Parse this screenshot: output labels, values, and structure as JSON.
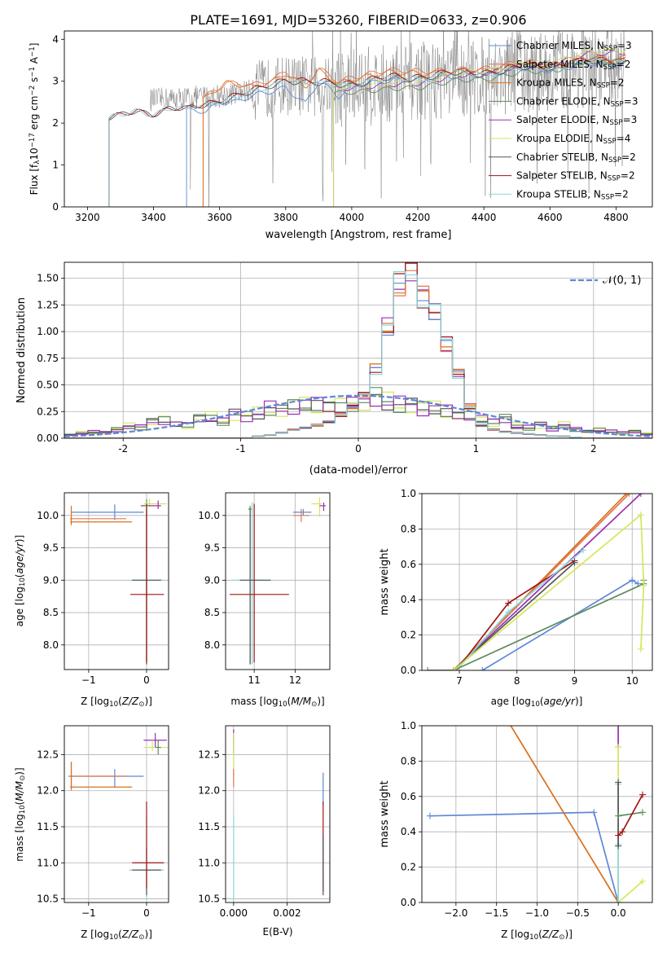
{
  "figure_title": "PLATE=1691, MJD=53260, FIBERID=0633, z=0.906",
  "colors": {
    "Chabrier MILES": "#5f87d6",
    "Salpeter MILES": "#e07850",
    "Kroupa MILES": "#d9711f",
    "Chabrier ELODIE": "#5e8a5e",
    "Salpeter ELODIE": "#9b2fb0",
    "Kroupa ELODIE": "#d6e65a",
    "Chabrier STELIB": "#555555",
    "Salpeter STELIB": "#a11515",
    "Kroupa STELIB": "#88d8dc",
    "normal_curve": "#5f87d6",
    "data": "#808080"
  },
  "chart_data": [
    {
      "id": "spectrum",
      "type": "line",
      "title": "PLATE=1691, MJD=53260, FIBERID=0633, z=0.906",
      "xlabel": "wavelength [Angstrom, rest frame]",
      "ylabel": "Flux [f_λ10^-17 erg cm^-2 s^-1 A^-1]",
      "xlim": [
        3130,
        4910
      ],
      "ylim": [
        0,
        4.2
      ],
      "xticks": [
        3200,
        3400,
        3600,
        3800,
        4000,
        4200,
        4400,
        4600,
        4800
      ],
      "yticks": [
        0,
        1,
        2,
        3,
        4
      ],
      "grid": false,
      "legend_position": "top-right",
      "legend": [
        "Chabrier MILES, N_SSP=3",
        "Salpeter MILES, N_SSP=2",
        "Kroupa MILES, N_SSP=2",
        "Chabrier ELODIE, N_SSP=3",
        "Salpeter ELODIE, N_SSP=3",
        "Kroupa ELODIE, N_SSP=4",
        "Chabrier STELIB, N_SSP=2",
        "Salpeter STELIB, N_SSP=2",
        "Kroupa STELIB, N_SSP=2"
      ],
      "data_series": {
        "name": "data",
        "x_range": [
          3390,
          4830
        ],
        "baseline": [
          [
            3390,
            2.55
          ],
          [
            3600,
            2.65
          ],
          [
            3800,
            2.9
          ],
          [
            4000,
            2.85
          ],
          [
            4200,
            3.0
          ],
          [
            4400,
            3.1
          ],
          [
            4600,
            3.25
          ],
          [
            4830,
            3.4
          ]
        ]
      },
      "model_series": [
        {
          "name": "Chabrier MILES",
          "start": 3500,
          "points": [
            [
              3500,
              2.25
            ],
            [
              3560,
              2.3
            ],
            [
              3600,
              2.55
            ],
            [
              3650,
              2.5
            ],
            [
              3700,
              2.6
            ],
            [
              3800,
              2.9
            ],
            [
              3860,
              2.45
            ],
            [
              3900,
              2.95
            ],
            [
              3960,
              2.65
            ],
            [
              4000,
              2.95
            ],
            [
              4100,
              2.95
            ],
            [
              4200,
              3.1
            ],
            [
              4300,
              3.05
            ],
            [
              4400,
              3.2
            ],
            [
              4600,
              3.3
            ],
            [
              4830,
              3.45
            ]
          ]
        },
        {
          "name": "Salpeter MILES",
          "start": 3550,
          "points": [
            [
              3550,
              2.6
            ],
            [
              3580,
              2.8
            ],
            [
              3620,
              3.0
            ],
            [
              3700,
              2.85
            ],
            [
              3760,
              3.05
            ],
            [
              3800,
              3.3
            ],
            [
              3860,
              2.9
            ],
            [
              3900,
              3.25
            ],
            [
              3960,
              3.0
            ],
            [
              4000,
              3.15
            ],
            [
              4100,
              3.2
            ],
            [
              4200,
              3.3
            ],
            [
              4300,
              3.2
            ],
            [
              4400,
              3.35
            ],
            [
              4600,
              3.45
            ],
            [
              4830,
              3.6
            ]
          ]
        },
        {
          "name": "Kroupa MILES",
          "start": 3550,
          "points": [
            [
              3550,
              2.55
            ],
            [
              3580,
              2.8
            ],
            [
              3620,
              3.0
            ],
            [
              3700,
              2.8
            ],
            [
              3760,
              3.0
            ],
            [
              3800,
              3.25
            ],
            [
              3860,
              2.85
            ],
            [
              3900,
              3.2
            ],
            [
              3960,
              2.95
            ],
            [
              4000,
              3.1
            ],
            [
              4100,
              3.15
            ],
            [
              4200,
              3.25
            ],
            [
              4300,
              3.15
            ],
            [
              4400,
              3.3
            ],
            [
              4600,
              3.4
            ],
            [
              4830,
              3.55
            ]
          ]
        },
        {
          "name": "Chabrier ELODIE",
          "start": 3945,
          "points": [
            [
              3945,
              2.7
            ],
            [
              4000,
              2.8
            ],
            [
              4100,
              2.75
            ],
            [
              4200,
              2.9
            ],
            [
              4300,
              2.95
            ],
            [
              4400,
              3.1
            ],
            [
              4500,
              3.15
            ],
            [
              4600,
              3.3
            ],
            [
              4830,
              3.55
            ]
          ]
        },
        {
          "name": "Salpeter ELODIE",
          "start": 3945,
          "points": [
            [
              3945,
              2.8
            ],
            [
              4000,
              2.9
            ],
            [
              4100,
              2.85
            ],
            [
              4200,
              3.0
            ],
            [
              4300,
              3.05
            ],
            [
              4400,
              3.25
            ],
            [
              4500,
              3.3
            ],
            [
              4600,
              3.45
            ],
            [
              4830,
              3.75
            ]
          ]
        },
        {
          "name": "Kroupa ELODIE",
          "start": 3945,
          "points": [
            [
              3945,
              2.85
            ],
            [
              4000,
              2.95
            ],
            [
              4100,
              2.9
            ],
            [
              4200,
              3.05
            ],
            [
              4300,
              3.1
            ],
            [
              4400,
              3.3
            ],
            [
              4500,
              3.35
            ],
            [
              4600,
              3.5
            ],
            [
              4830,
              3.8
            ]
          ]
        },
        {
          "name": "Chabrier STELIB",
          "start": 3265,
          "points": [
            [
              3265,
              2.1
            ],
            [
              3300,
              2.15
            ],
            [
              3350,
              2.3
            ],
            [
              3400,
              2.25
            ],
            [
              3450,
              2.35
            ],
            [
              3500,
              2.3
            ],
            [
              3600,
              2.55
            ],
            [
              3700,
              2.7
            ],
            [
              3800,
              3.05
            ],
            [
              3900,
              2.9
            ],
            [
              4000,
              2.95
            ],
            [
              4200,
              3.1
            ],
            [
              4400,
              3.2
            ],
            [
              4600,
              3.35
            ],
            [
              4830,
              3.5
            ]
          ]
        },
        {
          "name": "Salpeter STELIB",
          "start": 3265,
          "points": [
            [
              3265,
              2.1
            ],
            [
              3300,
              2.15
            ],
            [
              3350,
              2.3
            ],
            [
              3400,
              2.25
            ],
            [
              3450,
              2.35
            ],
            [
              3500,
              2.3
            ],
            [
              3600,
              2.6
            ],
            [
              3700,
              2.75
            ],
            [
              3800,
              3.1
            ],
            [
              3900,
              2.95
            ],
            [
              4000,
              3.0
            ],
            [
              4200,
              3.15
            ],
            [
              4400,
              3.25
            ],
            [
              4600,
              3.4
            ],
            [
              4830,
              3.55
            ]
          ]
        },
        {
          "name": "Kroupa STELIB",
          "start": 3265,
          "points": [
            [
              3265,
              2.1
            ],
            [
              3300,
              2.15
            ],
            [
              3350,
              2.3
            ],
            [
              3400,
              2.25
            ],
            [
              3450,
              2.35
            ],
            [
              3500,
              2.3
            ],
            [
              3600,
              2.55
            ],
            [
              3700,
              2.7
            ],
            [
              3800,
              3.05
            ],
            [
              3900,
              2.9
            ],
            [
              4000,
              2.95
            ],
            [
              4200,
              3.1
            ],
            [
              4400,
              3.2
            ],
            [
              4600,
              3.35
            ],
            [
              4830,
              3.5
            ]
          ]
        }
      ]
    },
    {
      "id": "residuals",
      "type": "histogram",
      "xlabel": "(data-model)/error",
      "ylabel": "Normed distribution",
      "xlim": [
        -2.5,
        2.5
      ],
      "ylim": [
        0,
        1.65
      ],
      "xticks": [
        -2,
        -1,
        0,
        1,
        2
      ],
      "yticks": [
        0.0,
        0.25,
        0.5,
        0.75,
        1.0,
        1.25,
        1.5
      ],
      "grid": true,
      "legend_position": "top-right",
      "legend": [
        "𝒩(0, 1)"
      ],
      "bin_width": 0.1,
      "bin_start": -2.5,
      "series": [
        {
          "name": "narrow",
          "values": [
            0,
            0,
            0,
            0,
            0,
            0,
            0,
            0,
            0,
            0,
            0,
            0,
            0,
            0,
            0,
            0,
            0.02,
            0.03,
            0.05,
            0.08,
            0.1,
            0.12,
            0.15,
            0.22,
            0.3,
            0.4,
            0.65,
            1.05,
            1.45,
            1.58,
            1.32,
            1.2,
            0.88,
            0.6,
            0.3,
            0.12,
            0.08,
            0.06,
            0.05,
            0.04,
            0.03,
            0.02,
            0.02,
            0.01,
            0,
            0,
            0,
            0,
            0,
            0
          ]
        },
        {
          "name": "wide",
          "values": [
            0.03,
            0.05,
            0.06,
            0.05,
            0.08,
            0.12,
            0.1,
            0.15,
            0.17,
            0.14,
            0.12,
            0.18,
            0.2,
            0.16,
            0.22,
            0.2,
            0.24,
            0.28,
            0.25,
            0.3,
            0.34,
            0.31,
            0.28,
            0.3,
            0.33,
            0.35,
            0.38,
            0.35,
            0.32,
            0.3,
            0.28,
            0.3,
            0.25,
            0.2,
            0.22,
            0.19,
            0.15,
            0.18,
            0.12,
            0.1,
            0.12,
            0.09,
            0.13,
            0.08,
            0.06,
            0.08,
            0.07,
            0.05,
            0.06,
            0.04
          ]
        },
        {
          "name": "normal_curve",
          "mu": 0,
          "sigma": 1
        }
      ]
    },
    {
      "id": "age-vs-Z",
      "type": "errorbar",
      "xlabel": "Z [log10(Z/Z⊙)]",
      "ylabel": "age  [log10(age/yr)]",
      "xlim": [
        -1.42,
        0.38
      ],
      "ylim": [
        7.62,
        10.35
      ],
      "xticks": [
        -1,
        0
      ],
      "yticks": [
        8.0,
        8.5,
        9.0,
        9.5,
        10.0
      ],
      "grid": true
    },
    {
      "id": "age-vs-mass",
      "type": "errorbar",
      "xlabel": "mass [log10(M/M⊙)]",
      "ylim": [
        7.62,
        10.35
      ],
      "xlim": [
        10.3,
        12.85
      ],
      "xticks": [
        11,
        12
      ],
      "yticks": [
        8.0,
        8.5,
        9.0,
        9.5,
        10.0
      ],
      "grid": true
    },
    {
      "id": "massweight-vs-age",
      "type": "line",
      "xlabel": "age  [log10(age/yr)]",
      "ylabel": "mass weight",
      "xlim": [
        6.35,
        10.35
      ],
      "ylim": [
        0,
        1
      ],
      "xticks": [
        7,
        8,
        9,
        10
      ],
      "yticks": [
        0.0,
        0.2,
        0.4,
        0.6,
        0.8,
        1.0
      ],
      "grid": true
    },
    {
      "id": "mass-vs-Z",
      "type": "errorbar",
      "xlabel": "Z [log10(Z/Z⊙)]",
      "ylabel": "mass [log10(M/M⊙)]",
      "xlim": [
        -1.42,
        0.38
      ],
      "ylim": [
        10.45,
        12.9
      ],
      "xticks": [
        -1,
        0
      ],
      "yticks": [
        10.5,
        11.0,
        11.5,
        12.0,
        12.5
      ],
      "grid": true
    },
    {
      "id": "mass-vs-EBV",
      "type": "errorbar",
      "xlabel": "E(B-V)",
      "xlim": [
        -0.0003,
        0.0036
      ],
      "ylim": [
        10.45,
        12.9
      ],
      "xticks": [
        0.0,
        0.002
      ],
      "xticklabels": [
        "0.000",
        "0.002"
      ],
      "yticks": [
        10.5,
        11.0,
        11.5,
        12.0,
        12.5
      ],
      "grid": true
    },
    {
      "id": "massweight-vs-Z",
      "type": "line",
      "xlabel": "Z [log10(Z/Z⊙)]",
      "ylabel": "mass weight",
      "xlim": [
        -2.42,
        0.42
      ],
      "ylim": [
        0,
        1
      ],
      "xticks": [
        -2.0,
        -1.5,
        -1.0,
        -0.5,
        0.0
      ],
      "yticks": [
        0.0,
        0.2,
        0.4,
        0.6,
        0.8,
        1.0
      ],
      "grid": true
    }
  ]
}
